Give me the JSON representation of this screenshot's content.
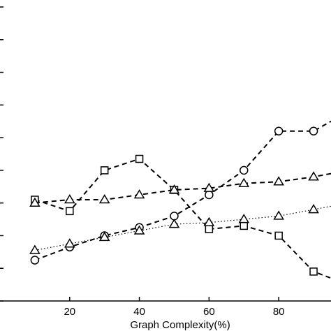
{
  "chart_data": {
    "type": "line",
    "title": "",
    "xlabel": "Graph Complexity(%)",
    "ylabel": "",
    "xlim": [
      0,
      95
    ],
    "ylim": [
      0,
      9
    ],
    "x_ticks": [
      20,
      40,
      60,
      80
    ],
    "y_ticks": [
      0,
      1,
      2,
      3,
      4,
      5,
      6,
      7,
      8,
      9
    ],
    "grid": false,
    "legend": "none",
    "series": [
      {
        "marker": "circle",
        "line": "dashed",
        "x": [
          10,
          20,
          30,
          40,
          50,
          60,
          70,
          80,
          90,
          95
        ],
        "y": [
          1.25,
          1.65,
          2.0,
          2.25,
          2.6,
          3.25,
          4.0,
          5.2,
          5.2,
          5.5
        ]
      },
      {
        "marker": "square",
        "line": "dashed",
        "x": [
          10,
          20,
          30,
          40,
          50,
          60,
          70,
          80,
          90,
          95
        ],
        "y": [
          3.1,
          2.75,
          4.0,
          4.35,
          3.4,
          2.2,
          2.3,
          2.0,
          0.9,
          0.7
        ]
      },
      {
        "marker": "triangle",
        "line": "dashed",
        "x": [
          10,
          20,
          30,
          40,
          50,
          60,
          70,
          80,
          90,
          95
        ],
        "y": [
          3.0,
          3.1,
          3.1,
          3.25,
          3.4,
          3.45,
          3.6,
          3.65,
          3.8,
          3.9
        ]
      },
      {
        "marker": "triangle",
        "line": "dotted",
        "x": [
          10,
          20,
          30,
          40,
          50,
          60,
          70,
          80,
          90,
          95
        ],
        "y": [
          1.55,
          1.75,
          1.95,
          2.15,
          2.35,
          2.4,
          2.5,
          2.6,
          2.8,
          2.9
        ]
      }
    ]
  }
}
